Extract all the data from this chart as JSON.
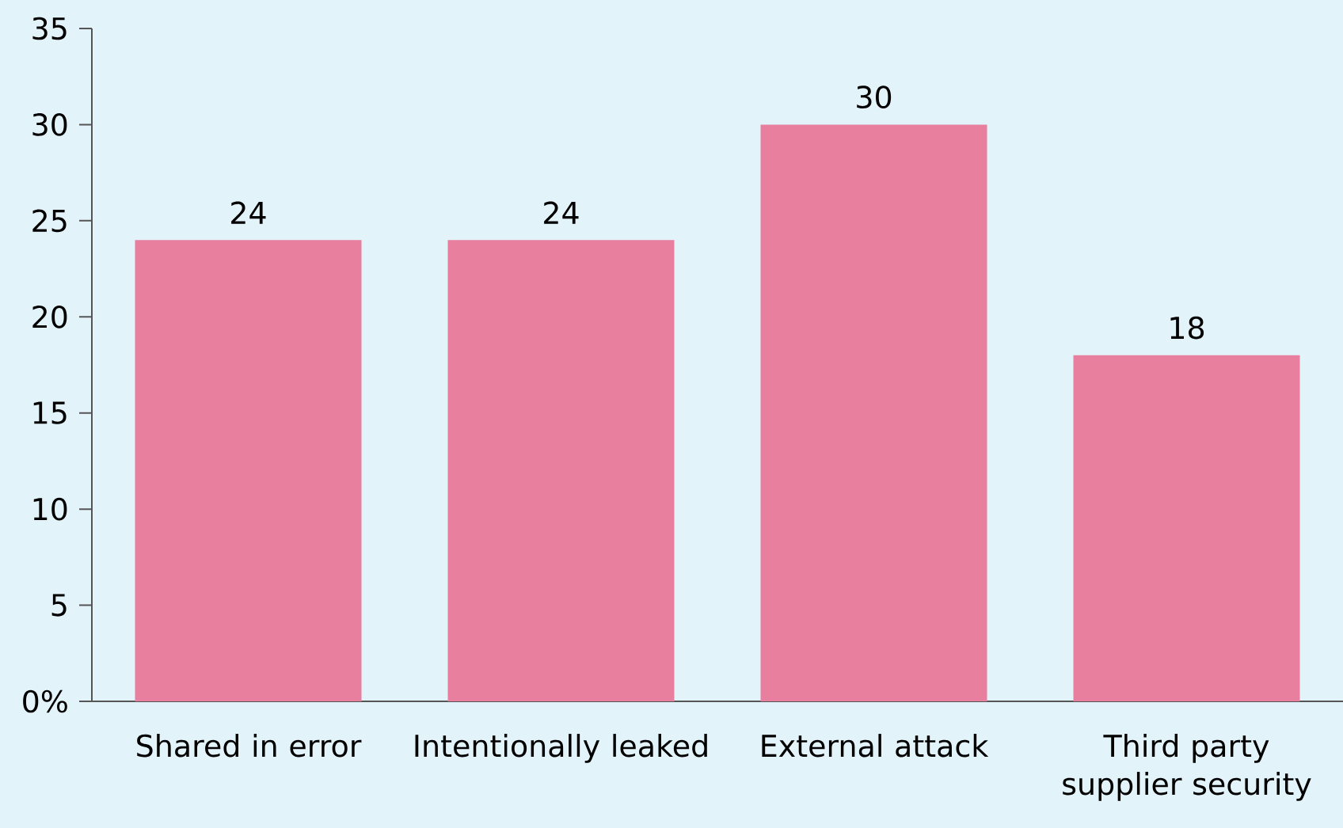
{
  "chart_data": {
    "type": "bar",
    "categories": [
      "Shared in error",
      "Intentionally leaked",
      "External attack",
      "Third party supplier security"
    ],
    "values": [
      24,
      24,
      30,
      18
    ],
    "color": "#e87f9f",
    "ylim": [
      0,
      35
    ],
    "yticks": [
      {
        "value": 0,
        "label": "0%"
      },
      5,
      10,
      15,
      20,
      25,
      30,
      35
    ],
    "data_labels": true,
    "grid": false
  }
}
